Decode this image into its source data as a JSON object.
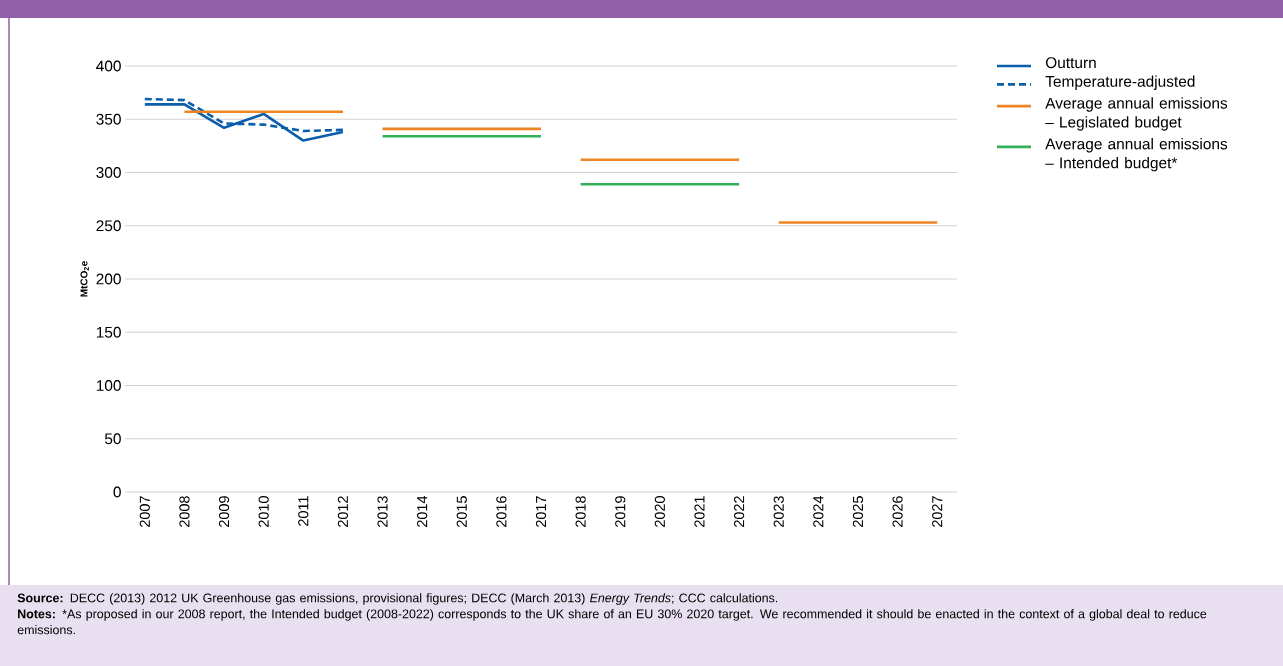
{
  "chart_data": {
    "type": "line",
    "ylabel": "**MtCO$_{2}$e**",
    "categories": [
      "2007",
      "2008",
      "2009",
      "2010",
      "2011",
      "2012",
      "2013",
      "2014",
      "2015",
      "2016",
      "2017",
      "2018",
      "2019",
      "2020",
      "2021",
      "2022",
      "2023",
      "2024",
      "2025",
      "2026",
      "2027"
    ],
    "series": [
      {
        "name": "Outturn",
        "color": "#0a5eab",
        "line_style": "solid",
        "values": [
          364,
          364,
          342,
          355,
          330,
          338,
          null,
          null,
          null,
          null,
          null,
          null,
          null,
          null,
          null,
          null,
          null,
          null,
          null,
          null,
          null
        ]
      },
      {
        "name": "Temperature-adjusted",
        "color": "#0a5eab",
        "line_style": "dashed",
        "values": [
          369,
          368,
          346,
          345,
          339,
          340,
          null,
          null,
          null,
          null,
          null,
          null,
          null,
          null,
          null,
          null,
          null,
          null,
          null,
          null,
          null
        ]
      },
      {
        "name": "Average annual emissions – Legislated budget",
        "color": "#ee8424",
        "line_style": "solid",
        "values": [
          null,
          357,
          357,
          357,
          357,
          357,
          null,
          null,
          null,
          null,
          null,
          null,
          null,
          null,
          null,
          null,
          null,
          null,
          null,
          null,
          null
        ]
      },
      {
        "color": "#ee8424",
        "line_style": "solid",
        "values": [
          null,
          null,
          null,
          null,
          null,
          null,
          341,
          341,
          341,
          341,
          341,
          null,
          null,
          null,
          null,
          null,
          null,
          null,
          null,
          null,
          null
        ]
      },
      {
        "color": "#ee8424",
        "line_style": "solid",
        "values": [
          null,
          null,
          null,
          null,
          null,
          null,
          null,
          null,
          null,
          null,
          null,
          312,
          312,
          312,
          312,
          312,
          null,
          null,
          null,
          null,
          null
        ]
      },
      {
        "color": "#ee8424",
        "line_style": "solid",
        "values": [
          null,
          null,
          null,
          null,
          null,
          null,
          null,
          null,
          null,
          null,
          null,
          null,
          null,
          null,
          null,
          null,
          253,
          253,
          253,
          253,
          253
        ]
      },
      {
        "name": "Average annual emissions – Intended budget*",
        "color": "#34b05a",
        "line_style": "solid",
        "values": [
          null,
          null,
          null,
          null,
          null,
          null,
          334,
          334,
          334,
          334,
          334,
          null,
          null,
          null,
          null,
          null,
          null,
          null,
          null,
          null,
          null
        ]
      },
      {
        "color": "#34b05a",
        "line_style": "solid",
        "values": [
          null,
          null,
          null,
          null,
          null,
          null,
          null,
          null,
          null,
          null,
          null,
          289,
          289,
          289,
          289,
          289,
          null,
          null,
          null,
          null,
          null
        ]
      }
    ],
    "ylim": [
      0,
      400
    ],
    "yticks": [
      0,
      50,
      100,
      150,
      200,
      250,
      300,
      350,
      400
    ],
    "grid": "y",
    "legend": "top right",
    "marker": "none",
    "annotations": [
      "**Source:** DECC (2013) 2012 UK Greenhouse gas emissions, provisional figures; DECC (March 2013) *Energy Trends*; CCC calculations.",
      "**Notes:** *As proposed in our 2008 report, the Intended budget (2008-2022) corresponds to the UK share of an EU 30% 2020 target. We recommended it should be enacted in the context of a global deal to reduce emissions."
    ]
  }
}
